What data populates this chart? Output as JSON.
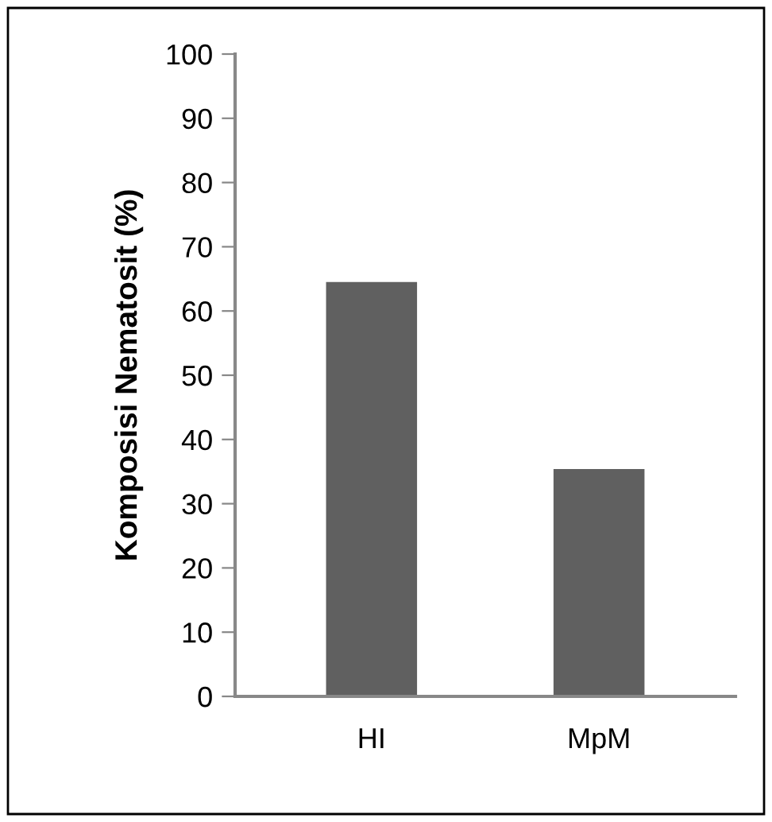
{
  "chart_data": {
    "type": "bar",
    "ylabel": "Komposisi Nematosit (%)",
    "categories": [
      "HI",
      "MpM"
    ],
    "values": [
      64.5,
      35.4
    ],
    "color": "#606060",
    "ylim": [
      0,
      100
    ],
    "yticks": [
      0,
      10,
      20,
      30,
      40,
      50,
      60,
      70,
      80,
      90,
      100
    ],
    "grid": false,
    "legend": false
  }
}
